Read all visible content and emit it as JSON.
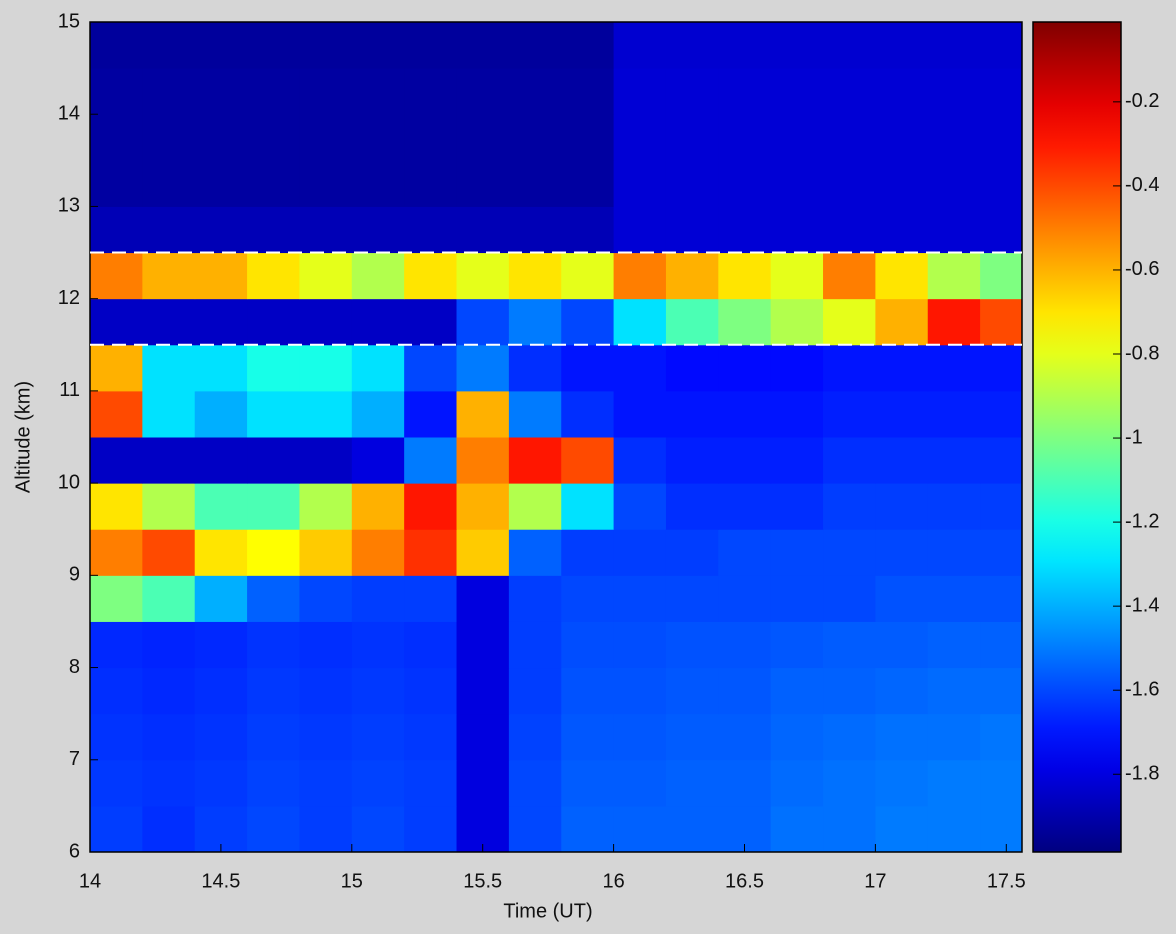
{
  "chart_data": {
    "type": "heatmap",
    "xlabel": "Time (UT)",
    "ylabel": "Altitude (km)",
    "x": [
      14.1,
      14.3,
      14.5,
      14.7,
      14.9,
      15.1,
      15.3,
      15.5,
      15.7,
      15.9,
      16.1,
      16.3,
      16.5,
      16.7,
      16.9,
      17.1,
      17.3,
      17.5
    ],
    "y": [
      6.25,
      6.75,
      7.25,
      7.75,
      8.25,
      8.75,
      9.25,
      9.75,
      10.25,
      10.75,
      11.25,
      11.75,
      12.25,
      12.75,
      13.25,
      13.75,
      14.25,
      14.75
    ],
    "z": [
      [
        -1.62,
        -1.65,
        -1.62,
        -1.6,
        -1.62,
        -1.6,
        -1.62,
        -1.8,
        -1.6,
        -1.55,
        -1.55,
        -1.55,
        -1.55,
        -1.52,
        -1.52,
        -1.5,
        -1.5,
        -1.5
      ],
      [
        -1.63,
        -1.64,
        -1.63,
        -1.61,
        -1.62,
        -1.61,
        -1.62,
        -1.8,
        -1.6,
        -1.56,
        -1.56,
        -1.55,
        -1.55,
        -1.53,
        -1.52,
        -1.51,
        -1.5,
        -1.5
      ],
      [
        -1.64,
        -1.65,
        -1.64,
        -1.62,
        -1.63,
        -1.62,
        -1.63,
        -1.8,
        -1.61,
        -1.57,
        -1.57,
        -1.56,
        -1.56,
        -1.54,
        -1.53,
        -1.52,
        -1.52,
        -1.51
      ],
      [
        -1.65,
        -1.66,
        -1.65,
        -1.63,
        -1.64,
        -1.63,
        -1.64,
        -1.8,
        -1.62,
        -1.58,
        -1.58,
        -1.57,
        -1.57,
        -1.55,
        -1.55,
        -1.54,
        -1.53,
        -1.53
      ],
      [
        -1.66,
        -1.67,
        -1.66,
        -1.64,
        -1.65,
        -1.64,
        -1.65,
        -1.8,
        -1.62,
        -1.59,
        -1.59,
        -1.58,
        -1.58,
        -1.57,
        -1.56,
        -1.56,
        -1.55,
        -1.55
      ],
      [
        -1.0,
        -1.1,
        -1.4,
        -1.55,
        -1.6,
        -1.62,
        -1.62,
        -1.8,
        -1.62,
        -1.6,
        -1.6,
        -1.6,
        -1.6,
        -1.6,
        -1.6,
        -1.58,
        -1.58,
        -1.58
      ],
      [
        -0.5,
        -0.4,
        -0.7,
        -0.75,
        -0.65,
        -0.5,
        -0.35,
        -0.65,
        -1.55,
        -1.62,
        -1.62,
        -1.62,
        -1.6,
        -1.6,
        -1.6,
        -1.6,
        -1.6,
        -1.6
      ],
      [
        -0.7,
        -0.9,
        -1.1,
        -1.1,
        -0.9,
        -0.6,
        -0.3,
        -0.6,
        -0.9,
        -1.3,
        -1.6,
        -1.65,
        -1.65,
        -1.65,
        -1.62,
        -1.62,
        -1.62,
        -1.62
      ],
      [
        -1.85,
        -1.85,
        -1.85,
        -1.85,
        -1.85,
        -1.8,
        -1.5,
        -0.5,
        -0.3,
        -0.4,
        -1.65,
        -1.68,
        -1.68,
        -1.68,
        -1.65,
        -1.65,
        -1.65,
        -1.65
      ],
      [
        -0.4,
        -1.3,
        -1.4,
        -1.3,
        -1.3,
        -1.4,
        -1.7,
        -0.6,
        -1.5,
        -1.65,
        -1.7,
        -1.7,
        -1.7,
        -1.7,
        -1.68,
        -1.68,
        -1.68,
        -1.68
      ],
      [
        -0.6,
        -1.3,
        -1.3,
        -1.2,
        -1.2,
        -1.3,
        -1.6,
        -1.5,
        -1.65,
        -1.7,
        -1.7,
        -1.72,
        -1.72,
        -1.72,
        -1.7,
        -1.7,
        -1.7,
        -1.7
      ],
      [
        -1.85,
        -1.85,
        -1.85,
        -1.85,
        -1.85,
        -1.85,
        -1.85,
        -1.6,
        -1.5,
        -1.6,
        -1.3,
        -1.1,
        -1.0,
        -0.9,
        -0.8,
        -0.6,
        -0.3,
        -0.4
      ],
      [
        -0.5,
        -0.6,
        -0.6,
        -0.7,
        -0.8,
        -0.9,
        -0.7,
        -0.8,
        -0.7,
        -0.8,
        -0.5,
        -0.6,
        -0.7,
        -0.8,
        -0.5,
        -0.7,
        -0.9,
        -1.0
      ],
      [
        -1.88,
        -1.88,
        -1.88,
        -1.88,
        -1.88,
        -1.88,
        -1.88,
        -1.88,
        -1.88,
        -1.88,
        -1.82,
        -1.82,
        -1.82,
        -1.82,
        -1.82,
        -1.82,
        -1.82,
        -1.82
      ],
      [
        -1.92,
        -1.92,
        -1.92,
        -1.92,
        -1.92,
        -1.92,
        -1.92,
        -1.92,
        -1.92,
        -1.92,
        -1.82,
        -1.82,
        -1.82,
        -1.82,
        -1.82,
        -1.82,
        -1.82,
        -1.82
      ],
      [
        -1.92,
        -1.92,
        -1.92,
        -1.92,
        -1.92,
        -1.92,
        -1.92,
        -1.92,
        -1.92,
        -1.92,
        -1.82,
        -1.82,
        -1.82,
        -1.82,
        -1.82,
        -1.82,
        -1.82,
        -1.82
      ],
      [
        -1.92,
        -1.92,
        -1.92,
        -1.92,
        -1.92,
        -1.92,
        -1.92,
        -1.92,
        -1.92,
        -1.92,
        -1.82,
        -1.82,
        -1.82,
        -1.82,
        -1.82,
        -1.82,
        -1.82,
        -1.82
      ],
      [
        -1.93,
        -1.93,
        -1.93,
        -1.93,
        -1.93,
        -1.93,
        -1.93,
        -1.93,
        -1.93,
        -1.93,
        -1.83,
        -1.83,
        -1.83,
        -1.83,
        -1.83,
        -1.83,
        -1.83,
        -1.83
      ]
    ],
    "xlim": [
      14,
      17.56
    ],
    "xticks": [
      14,
      14.5,
      15,
      15.5,
      16,
      16.5,
      17,
      17.5
    ],
    "ylim": [
      6,
      15
    ],
    "yticks": [
      6,
      7,
      8,
      9,
      10,
      11,
      12,
      13,
      14,
      15
    ],
    "clim": [
      -1.985,
      -0.01
    ],
    "cticks": [
      -0.2,
      -0.4,
      -0.6,
      -0.8,
      -1,
      -1.2,
      -1.4,
      -1.6,
      -1.8
    ],
    "colormap": "jet",
    "hlines": [
      12.5,
      11.5
    ],
    "hline_color": "#ffffff"
  }
}
